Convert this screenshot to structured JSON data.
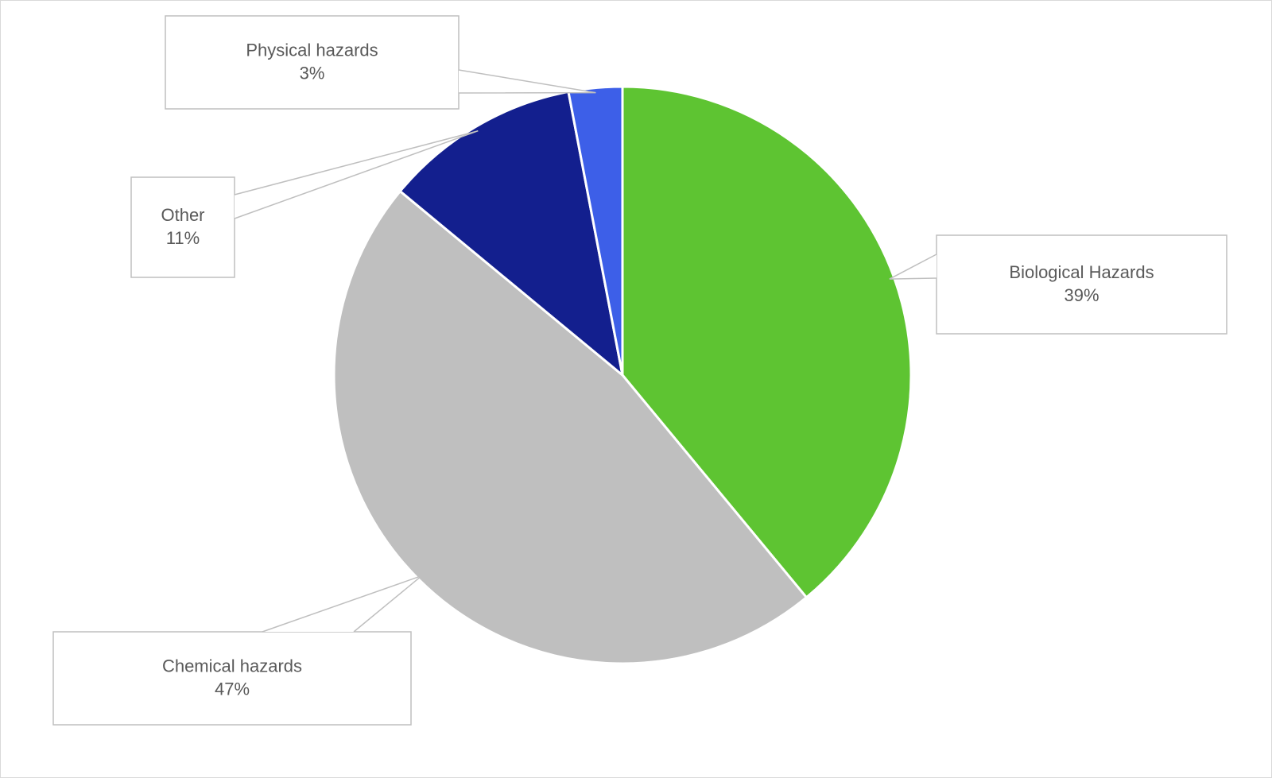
{
  "chart_data": {
    "type": "pie",
    "categories": [
      "Biological Hazards",
      "Chemical hazards",
      "Other",
      "Physical hazards"
    ],
    "values": [
      39,
      47,
      11,
      3
    ],
    "value_labels": [
      "39%",
      "47%",
      "11%",
      "3%"
    ],
    "colors": [
      "#5ec432",
      "#bfbfbf",
      "#131f8e",
      "#3d5fe8"
    ]
  }
}
